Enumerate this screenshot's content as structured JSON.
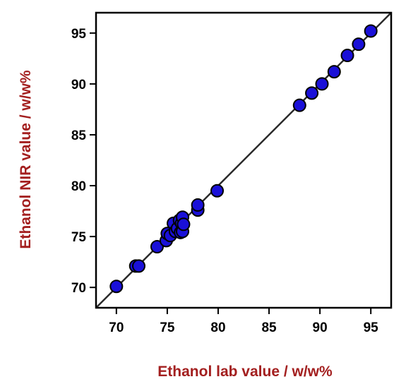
{
  "chart_data": {
    "type": "scatter",
    "title": "",
    "xlabel": "Ethanol lab value / w/w%",
    "ylabel": "Ethanol NIR value / w/w%",
    "xlim": [
      68,
      97
    ],
    "ylim": [
      68,
      97
    ],
    "xticks": [
      70,
      75,
      80,
      85,
      90,
      95
    ],
    "yticks": [
      70,
      75,
      80,
      85,
      90,
      95
    ],
    "grid": false,
    "legend": "none",
    "reference_line": {
      "type": "identity",
      "from": [
        68,
        68
      ],
      "to": [
        97,
        97
      ]
    },
    "series": [
      {
        "x": [
          70.0,
          71.9,
          72.2,
          74.0,
          74.9,
          75.0,
          75.3,
          75.6,
          75.8,
          76.0,
          76.2,
          76.3,
          76.4,
          76.5,
          76.5,
          76.6,
          78.0,
          78.0,
          79.9,
          88.0,
          89.2,
          90.2,
          91.4,
          92.7,
          93.8,
          95.0
        ],
        "y": [
          70.1,
          72.1,
          72.1,
          74.0,
          74.6,
          75.3,
          75.1,
          76.3,
          75.5,
          75.8,
          76.6,
          75.4,
          76.3,
          75.5,
          76.9,
          76.2,
          77.6,
          78.1,
          79.5,
          87.9,
          89.1,
          90.0,
          91.2,
          92.8,
          93.9,
          95.2
        ]
      }
    ],
    "colors": {
      "marker_fill": "#1a10d8",
      "marker_edge": "#000000",
      "line": "#2b2b2b",
      "axis_label": "#a31f1f",
      "frame": "#000000"
    }
  }
}
